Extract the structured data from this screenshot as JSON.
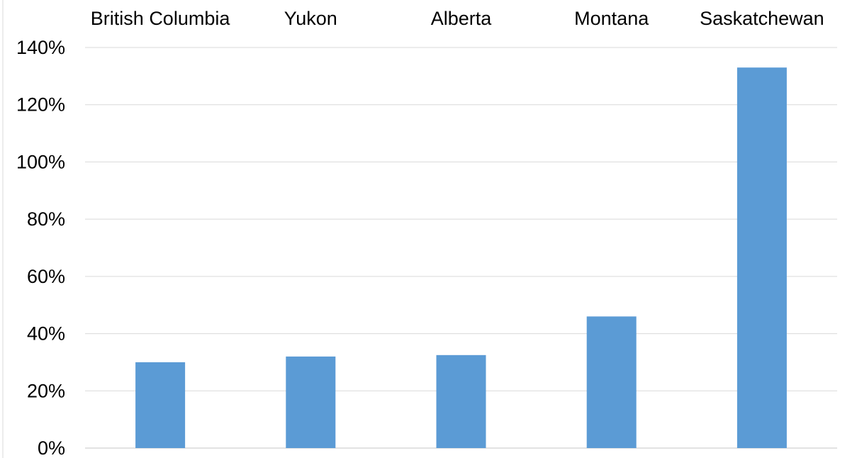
{
  "chart_data": {
    "type": "bar",
    "title": "",
    "xlabel": "",
    "ylabel": "",
    "categories": [
      "British Columbia",
      "Yukon",
      "Alberta",
      "Montana",
      "Saskatchewan"
    ],
    "values": [
      0.3,
      0.32,
      0.325,
      0.46,
      1.33
    ],
    "ylim": [
      0,
      1.4
    ],
    "y_ticks": [
      0,
      0.2,
      0.4,
      0.6,
      0.8,
      1.0,
      1.2,
      1.4
    ],
    "y_tick_labels": [
      "0%",
      "20%",
      "40%",
      "60%",
      "80%",
      "100%",
      "120%",
      "140%"
    ],
    "category_axis_position": "top",
    "grid": true,
    "legend": "none",
    "colors": {
      "bar": "#5b9bd5",
      "grid": "#d9d9d9",
      "text": "#000000"
    }
  }
}
